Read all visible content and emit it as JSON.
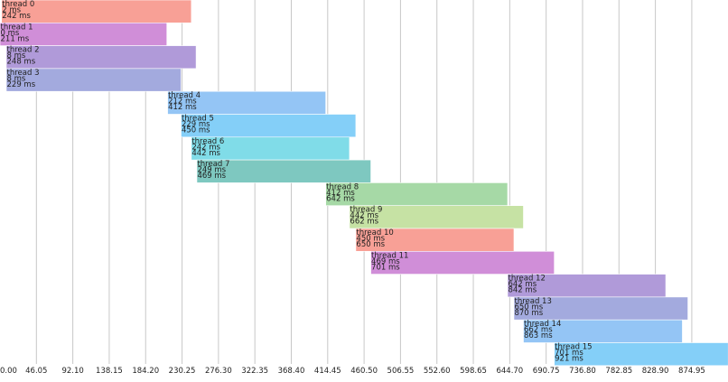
{
  "chart_data": {
    "type": "gantt",
    "x_unit": "ms",
    "xlim": [
      0,
      920.75
    ],
    "x_ticks": [
      "0.00",
      "46.05",
      "92.10",
      "138.15",
      "184.20",
      "230.25",
      "276.30",
      "322.35",
      "368.40",
      "414.45",
      "460.50",
      "506.55",
      "552.60",
      "598.65",
      "644.70",
      "690.75",
      "736.80",
      "782.85",
      "828.90",
      "874.95"
    ],
    "grid": "vertical",
    "threads": [
      {
        "name": "thread 0",
        "start": 2,
        "end": 242,
        "start_label": "2 ms",
        "end_label": "242 ms",
        "color": "#f8a096"
      },
      {
        "name": "thread 1",
        "start": 0,
        "end": 211,
        "start_label": "0 ms",
        "end_label": "211 ms",
        "color": "#d08ed8"
      },
      {
        "name": "thread 2",
        "start": 8,
        "end": 248,
        "start_label": "8 ms",
        "end_label": "248 ms",
        "color": "#b09ad9"
      },
      {
        "name": "thread 3",
        "start": 8,
        "end": 229,
        "start_label": "8 ms",
        "end_label": "229 ms",
        "color": "#a3aade"
      },
      {
        "name": "thread 4",
        "start": 212,
        "end": 412,
        "start_label": "212 ms",
        "end_label": "412 ms",
        "color": "#94c5f5"
      },
      {
        "name": "thread 5",
        "start": 229,
        "end": 450,
        "start_label": "229 ms",
        "end_label": "450 ms",
        "color": "#84cff8"
      },
      {
        "name": "thread 6",
        "start": 242,
        "end": 442,
        "start_label": "242 ms",
        "end_label": "442 ms",
        "color": "#80dce8"
      },
      {
        "name": "thread 7",
        "start": 249,
        "end": 469,
        "start_label": "249 ms",
        "end_label": "469 ms",
        "color": "#7ec8c0"
      },
      {
        "name": "thread 8",
        "start": 412,
        "end": 642,
        "start_label": "412 ms",
        "end_label": "642 ms",
        "color": "#a6d9a6"
      },
      {
        "name": "thread 9",
        "start": 442,
        "end": 662,
        "start_label": "442 ms",
        "end_label": "662 ms",
        "color": "#c6e2a4"
      },
      {
        "name": "thread 10",
        "start": 450,
        "end": 650,
        "start_label": "450 ms",
        "end_label": "650 ms",
        "color": "#f8a096"
      },
      {
        "name": "thread 11",
        "start": 469,
        "end": 701,
        "start_label": "469 ms",
        "end_label": "701 ms",
        "color": "#d08ed8"
      },
      {
        "name": "thread 12",
        "start": 642,
        "end": 842,
        "start_label": "642 ms",
        "end_label": "842 ms",
        "color": "#b09ad9"
      },
      {
        "name": "thread 13",
        "start": 650,
        "end": 870,
        "start_label": "650 ms",
        "end_label": "870 ms",
        "color": "#a3aade"
      },
      {
        "name": "thread 14",
        "start": 662,
        "end": 863,
        "start_label": "662 ms",
        "end_label": "863 ms",
        "color": "#94c5f5"
      },
      {
        "name": "thread 15",
        "start": 701,
        "end": 921,
        "start_label": "701 ms",
        "end_label": "921 ms",
        "color": "#84cff8"
      }
    ]
  }
}
